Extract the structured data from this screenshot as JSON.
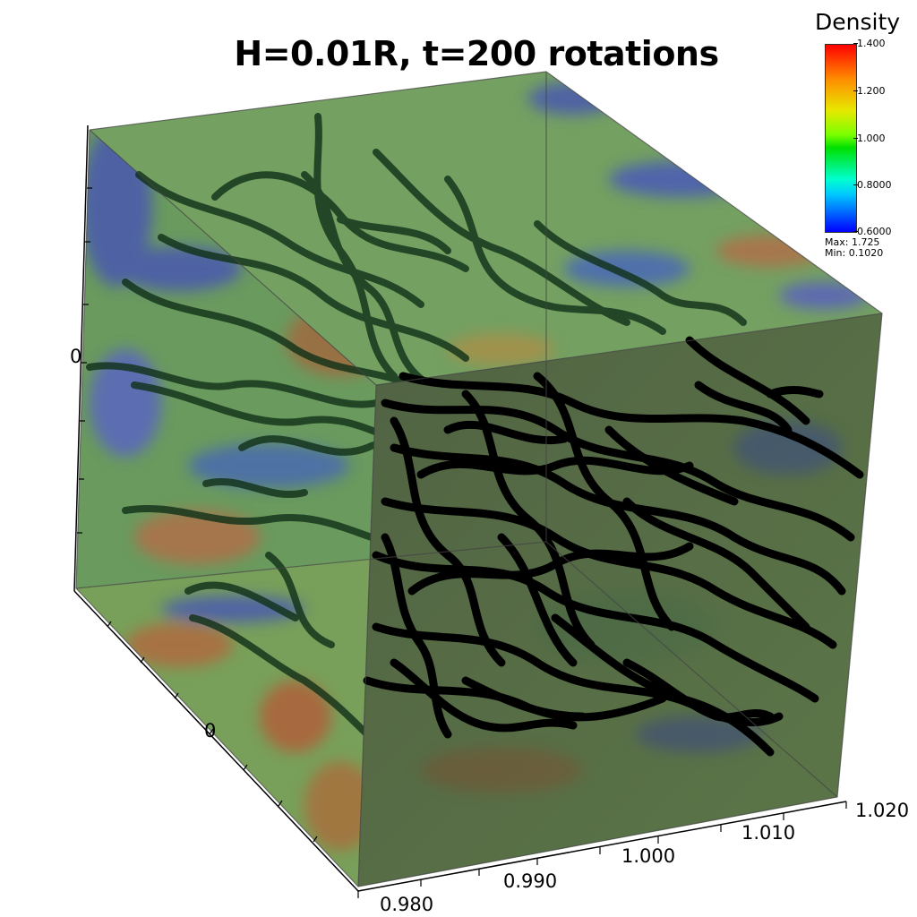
{
  "title": "H=0.01R, t=200 rotations",
  "colorbar": {
    "title": "Density",
    "ticks": [
      "1.400",
      "1.200",
      "1.000",
      "0.8000",
      "0.6000"
    ],
    "max_label": "Max:  1.725",
    "min_label": "Min:  0.1020"
  },
  "axes": {
    "y_zero": "0",
    "z_zero": "0",
    "x_ticks": [
      "0.980",
      "0.990",
      "1.000",
      "1.010",
      "1.020"
    ]
  },
  "colors": {
    "streamline": "#000000",
    "background": "#ffffff",
    "surface_base": "#6fa05a"
  }
}
